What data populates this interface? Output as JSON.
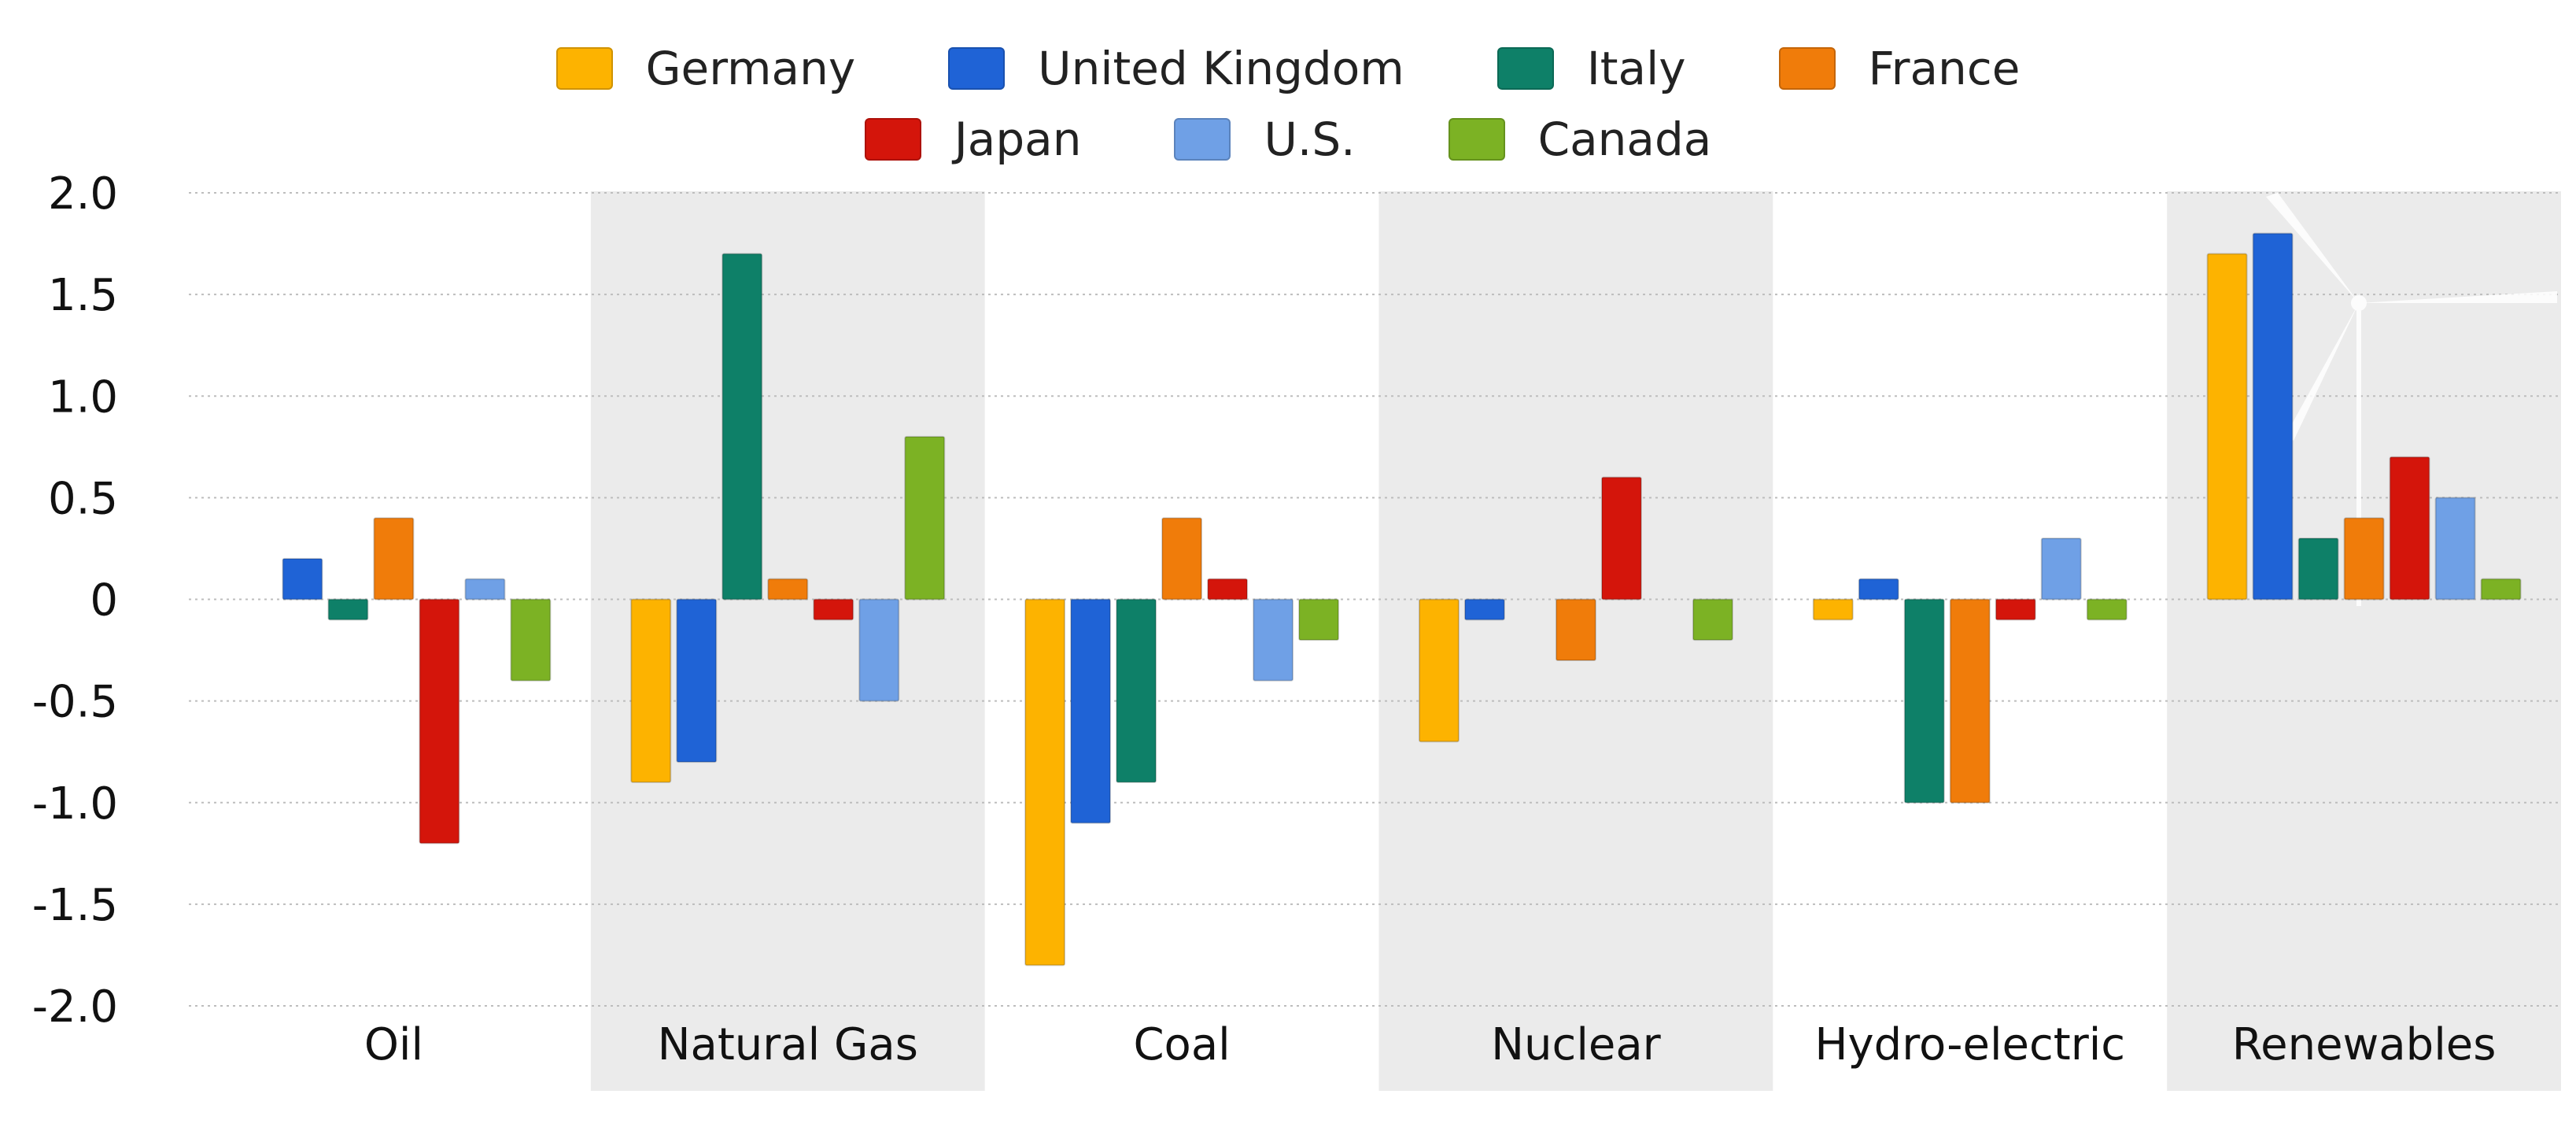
{
  "chart_data": {
    "type": "bar",
    "categories": [
      "Oil",
      "Natural Gas",
      "Coal",
      "Nuclear",
      "Hydro-electric",
      "Renewables"
    ],
    "series": [
      {
        "name": "Germany",
        "color": "#FDB300",
        "values": [
          0,
          -0.9,
          -1.8,
          -0.7,
          -0.1,
          1.7
        ]
      },
      {
        "name": "United Kingdom",
        "color": "#1F63D6",
        "values": [
          0.2,
          -0.8,
          -1.1,
          -0.1,
          0.1,
          1.8
        ]
      },
      {
        "name": "Italy",
        "color": "#0E8068",
        "values": [
          -0.1,
          1.7,
          -0.9,
          0,
          -1.0,
          0.3
        ]
      },
      {
        "name": "France",
        "color": "#F07C0A",
        "values": [
          0.4,
          0.1,
          0.4,
          -0.3,
          -1.0,
          0.4
        ]
      },
      {
        "name": "Japan",
        "color": "#D4150B",
        "values": [
          -1.2,
          -0.1,
          0.1,
          0.6,
          -0.1,
          0.7
        ]
      },
      {
        "name": "U.S.",
        "color": "#6FA0E6",
        "values": [
          0.1,
          -0.5,
          -0.4,
          0,
          0.3,
          0.5
        ]
      },
      {
        "name": "Canada",
        "color": "#7CB224",
        "values": [
          -0.4,
          0.8,
          -0.2,
          -0.2,
          -0.1,
          0.1
        ]
      }
    ],
    "yticks": [
      "2.0",
      "1.5",
      "1.0",
      "0.5",
      "0",
      "-0.5",
      "-1.0",
      "-1.5",
      "-2.0"
    ],
    "ylim": [
      -2.0,
      2.0
    ],
    "grid": true,
    "legend_position": "top-center",
    "alternating_band_color": "#EBEBEB"
  }
}
